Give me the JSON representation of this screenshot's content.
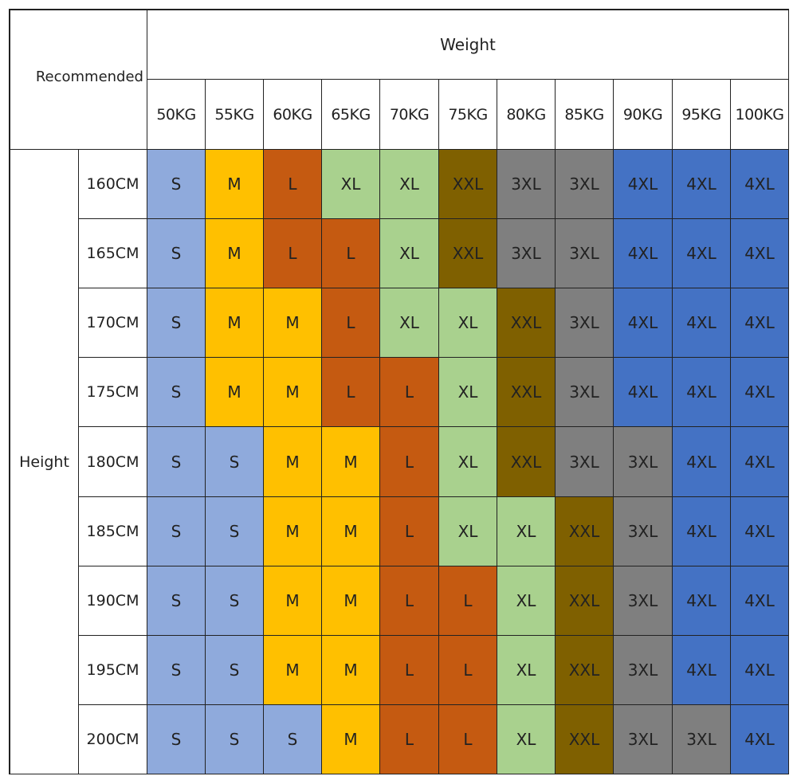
{
  "corner_label": "Recommended",
  "weight_label": "Weight",
  "height_label": "Height",
  "weights": [
    "50KG",
    "55KG",
    "60KG",
    "65KG",
    "70KG",
    "75KG",
    "80KG",
    "85KG",
    "90KG",
    "95KG",
    "100KG"
  ],
  "heights": [
    "160CM",
    "165CM",
    "170CM",
    "175CM",
    "180CM",
    "185CM",
    "190CM",
    "195CM",
    "200CM"
  ],
  "sizes": [
    [
      "S",
      "M",
      "L",
      "XL",
      "XL",
      "XXL",
      "3XL",
      "3XL",
      "4XL",
      "4XL",
      "4XL"
    ],
    [
      "S",
      "M",
      "L",
      "L",
      "XL",
      "XXL",
      "3XL",
      "3XL",
      "4XL",
      "4XL",
      "4XL"
    ],
    [
      "S",
      "M",
      "M",
      "L",
      "XL",
      "XL",
      "XXL",
      "3XL",
      "4XL",
      "4XL",
      "4XL"
    ],
    [
      "S",
      "M",
      "M",
      "L",
      "L",
      "XL",
      "XXL",
      "3XL",
      "4XL",
      "4XL",
      "4XL"
    ],
    [
      "S",
      "S",
      "M",
      "M",
      "L",
      "XL",
      "XXL",
      "3XL",
      "3XL",
      "4XL",
      "4XL"
    ],
    [
      "S",
      "S",
      "M",
      "M",
      "L",
      "XL",
      "XL",
      "XXL",
      "3XL",
      "4XL",
      "4XL"
    ],
    [
      "S",
      "S",
      "M",
      "M",
      "L",
      "L",
      "XL",
      "XXL",
      "3XL",
      "4XL",
      "4XL"
    ],
    [
      "S",
      "S",
      "M",
      "M",
      "L",
      "L",
      "XL",
      "XXL",
      "3XL",
      "4XL",
      "4XL"
    ],
    [
      "S",
      "S",
      "S",
      "M",
      "L",
      "L",
      "XL",
      "XXL",
      "3XL",
      "3XL",
      "4XL"
    ]
  ],
  "size_colors": {
    "S": "#8faadc",
    "M": "#ffc000",
    "L": "#c55a11",
    "XL": "#a9d18e",
    "XXL": "#7f6000",
    "3XL": "#7f7f7f",
    "4XL": "#4472c4"
  }
}
